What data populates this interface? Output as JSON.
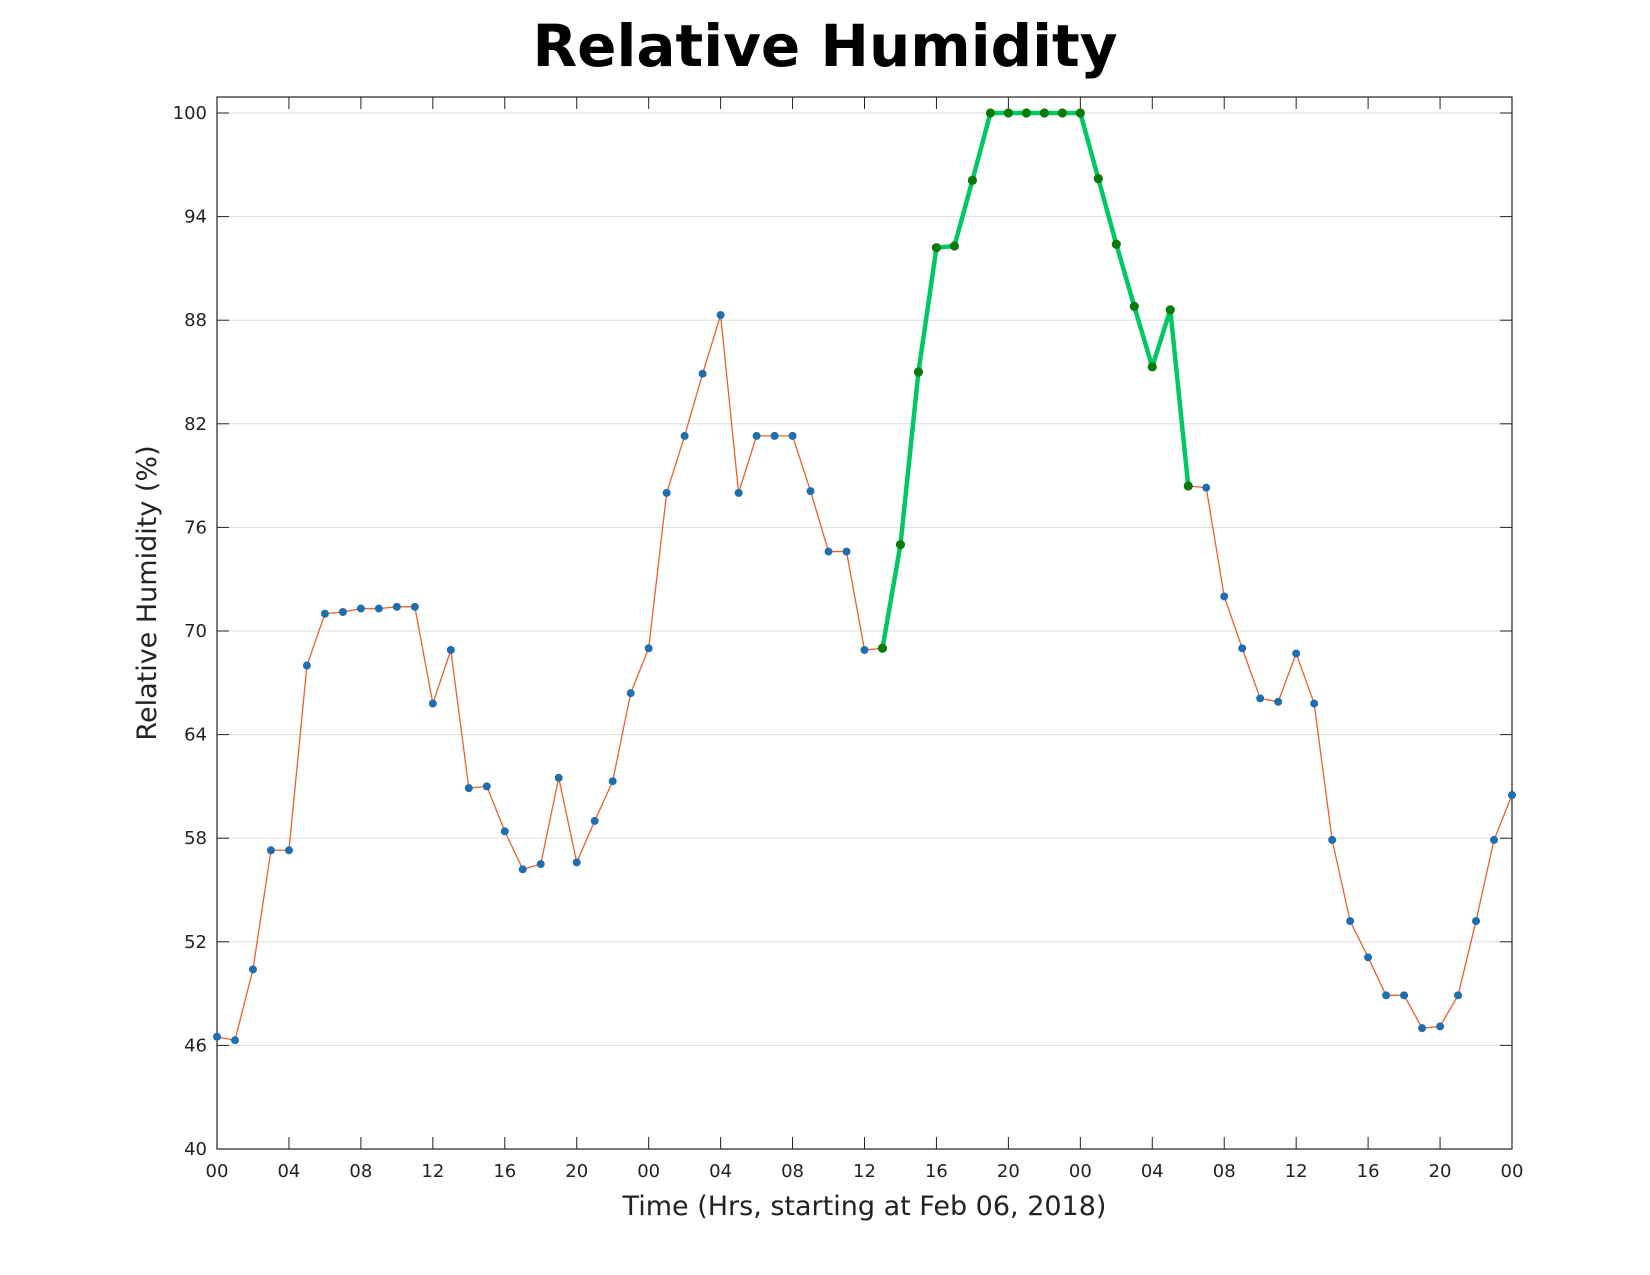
{
  "chart_data": {
    "type": "line",
    "title": "Relative Humidity",
    "xlabel": "Time (Hrs, starting at Feb 06, 2018)",
    "ylabel": "Relative Humidity (%)",
    "xlim": [
      0,
      72
    ],
    "ylim": [
      40,
      101
    ],
    "yticks": [
      40,
      46,
      52,
      58,
      64,
      70,
      76,
      82,
      88,
      94,
      100
    ],
    "xticks": [
      0,
      4,
      8,
      12,
      16,
      20,
      24,
      28,
      32,
      36,
      40,
      44,
      48,
      52,
      56,
      60,
      64,
      68,
      72
    ],
    "xtick_labels": [
      "00",
      "04",
      "08",
      "12",
      "16",
      "20",
      "00",
      "04",
      "08",
      "12",
      "16",
      "20",
      "00",
      "04",
      "08",
      "12",
      "16",
      "20",
      "00"
    ],
    "grid": "horizontal",
    "colors": {
      "line": "#e8602c",
      "marker": "#1f6fb0",
      "highlight_line": "#00c864",
      "highlight_marker": "#0a7a0a",
      "grid": "#dddddd",
      "axes": "#222222"
    },
    "series": [
      {
        "values": [
          46.5,
          46.3,
          50.4,
          57.3,
          57.3,
          68.0,
          71.0,
          71.1,
          71.3,
          71.3,
          71.4,
          71.4,
          65.8,
          68.9,
          60.9,
          61.0,
          58.4,
          56.2,
          56.5,
          61.5,
          56.6,
          59.0,
          61.3,
          66.4,
          69.0,
          78.0,
          81.3,
          84.9,
          88.3,
          78.0,
          81.3,
          81.3,
          81.3,
          78.1,
          74.6,
          74.6,
          68.9,
          69.0,
          75.0,
          85.0,
          92.2,
          92.3,
          96.1,
          100.0,
          100.0,
          100.0,
          100.0,
          100.0,
          100.0,
          96.2,
          92.4,
          88.8,
          85.3,
          88.6,
          78.4,
          78.3,
          72.0,
          69.0,
          66.1,
          65.9,
          68.7,
          65.8,
          57.9,
          53.2,
          51.1,
          48.9,
          48.9,
          47.0,
          47.1,
          48.9,
          53.2,
          57.9,
          60.5
        ]
      }
    ],
    "highlight": {
      "x_start": 37,
      "x_end": 54
    }
  }
}
